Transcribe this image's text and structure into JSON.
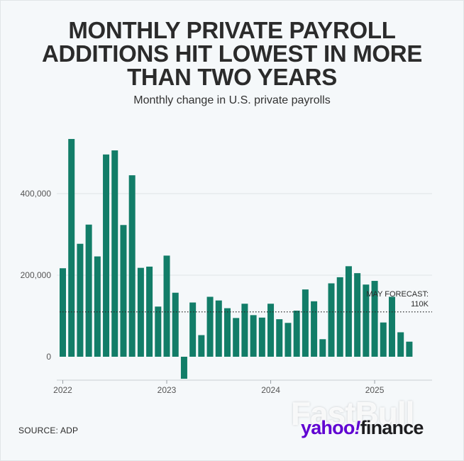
{
  "title_lines": [
    "MONTHLY PRIVATE PAYROLL",
    "ADDITIONS HIT LOWEST IN MORE",
    "THAN TWO YEARS"
  ],
  "source": "SOURCE: ADP",
  "logo": {
    "yahoo": "yahoo",
    "slash": "!",
    "finance": "finance"
  },
  "watermark": "FastBull",
  "colors": {
    "bar": "#127d68",
    "grid": "#dfe4e7",
    "text": "#2b2b2b",
    "logo_purple": "#6001d2"
  },
  "chart_data": {
    "type": "bar",
    "subtitle": "Monthly change in U.S. private payrolls",
    "categories": [
      "Jan 2022",
      "Feb 2022",
      "Mar 2022",
      "Apr 2022",
      "May 2022",
      "Jun 2022",
      "Jul 2022",
      "Aug 2022",
      "Sep 2022",
      "Oct 2022",
      "Nov 2022",
      "Dec 2022",
      "Jan 2023",
      "Feb 2023",
      "Mar 2023",
      "Apr 2023",
      "May 2023",
      "Jun 2023",
      "Jul 2023",
      "Aug 2023",
      "Sep 2023",
      "Oct 2023",
      "Nov 2023",
      "Dec 2023",
      "Jan 2024",
      "Feb 2024",
      "Mar 2024",
      "Apr 2024",
      "May 2024",
      "Jun 2024",
      "Jul 2024",
      "Aug 2024",
      "Sep 2024",
      "Oct 2024",
      "Nov 2024",
      "Dec 2024",
      "Jan 2025",
      "Feb 2025",
      "Mar 2025",
      "Apr 2025",
      "May 2025"
    ],
    "values": [
      217000,
      534000,
      277000,
      324000,
      246000,
      496000,
      506000,
      323000,
      445000,
      218000,
      221000,
      123000,
      248000,
      157000,
      -54000,
      133000,
      53000,
      147000,
      138000,
      119000,
      95000,
      130000,
      102000,
      96000,
      130000,
      92000,
      83000,
      113000,
      165000,
      136000,
      43000,
      180000,
      195000,
      222000,
      205000,
      177000,
      186000,
      84000,
      147000,
      60000,
      37000
    ],
    "x_tick_labels": [
      "2022",
      "2023",
      "2024",
      "2025"
    ],
    "y_ticks": [
      0,
      200000,
      400000
    ],
    "y_tick_labels": [
      "0",
      "200,000",
      "400,000"
    ],
    "ylim": [
      -55000,
      545000
    ],
    "grid": true,
    "forecast": {
      "value": 110000,
      "label_line1": "MAY FORECAST:",
      "label_line2": "110K"
    }
  }
}
